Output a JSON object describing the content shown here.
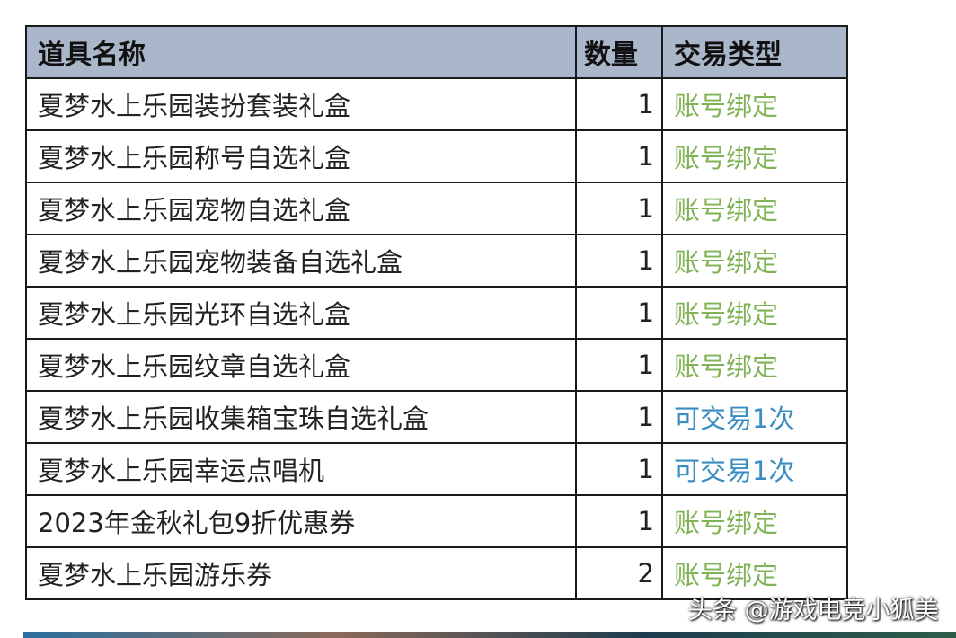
{
  "headers": {
    "name": "道具名称",
    "qty": "数量",
    "type": "交易类型"
  },
  "colors": {
    "header_bg": "#aab6c9",
    "bound": "#7fb356",
    "tradable": "#3a8dc1"
  },
  "rows": [
    {
      "name": "夏梦水上乐园装扮套装礼盒",
      "qty": "1",
      "type": "账号绑定",
      "kind": "green"
    },
    {
      "name": "夏梦水上乐园称号自选礼盒",
      "qty": "1",
      "type": "账号绑定",
      "kind": "green"
    },
    {
      "name": "夏梦水上乐园宠物自选礼盒",
      "qty": "1",
      "type": "账号绑定",
      "kind": "green"
    },
    {
      "name": "夏梦水上乐园宠物装备自选礼盒",
      "qty": "1",
      "type": "账号绑定",
      "kind": "green"
    },
    {
      "name": "夏梦水上乐园光环自选礼盒",
      "qty": "1",
      "type": "账号绑定",
      "kind": "green"
    },
    {
      "name": "夏梦水上乐园纹章自选礼盒",
      "qty": "1",
      "type": "账号绑定",
      "kind": "green"
    },
    {
      "name": "夏梦水上乐园收集箱宝珠自选礼盒",
      "qty": "1",
      "type": "可交易1次",
      "kind": "blue"
    },
    {
      "name": "夏梦水上乐园幸运点唱机",
      "qty": "1",
      "type": "可交易1次",
      "kind": "blue"
    },
    {
      "name": "2023年金秋礼包9折优惠券",
      "qty": "1",
      "type": "账号绑定",
      "kind": "green"
    },
    {
      "name": "夏梦水上乐园游乐券",
      "qty": "2",
      "type": "账号绑定",
      "kind": "green"
    }
  ],
  "watermark": "头条 @游戏电竞小狐美"
}
